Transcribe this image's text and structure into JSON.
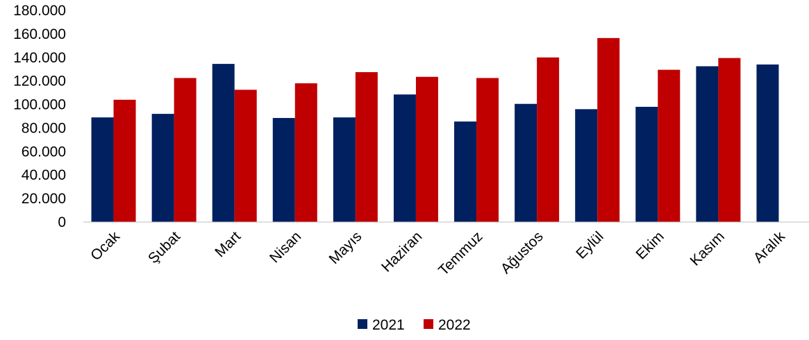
{
  "chart_data": {
    "type": "bar",
    "title": "",
    "xlabel": "",
    "ylabel": "",
    "categories": [
      "Ocak",
      "Şubat",
      "Mart",
      "Nisan",
      "Mayıs",
      "Haziran",
      "Temmuz",
      "Ağustos",
      "Eylül",
      "Ekim",
      "Kasım",
      "Aralık"
    ],
    "series": [
      {
        "name": "2021",
        "color": "#002060",
        "values": [
          89000,
          92000,
          134500,
          88500,
          89000,
          108500,
          85500,
          100500,
          96000,
          98000,
          132500,
          134000
        ]
      },
      {
        "name": "2022",
        "color": "#C00000",
        "values": [
          104000,
          122500,
          112500,
          118000,
          127500,
          123500,
          122500,
          140000,
          156500,
          129500,
          139500,
          null
        ]
      }
    ],
    "ylim": [
      0,
      180000
    ],
    "yticks": [
      "0",
      "20.000",
      "40.000",
      "60.000",
      "80.000",
      "100.000",
      "120.000",
      "140.000",
      "160.000",
      "180.000"
    ],
    "ytick_values": [
      0,
      20000,
      40000,
      60000,
      80000,
      100000,
      120000,
      140000,
      160000,
      180000
    ],
    "grid": false,
    "legend_position": "bottom"
  }
}
